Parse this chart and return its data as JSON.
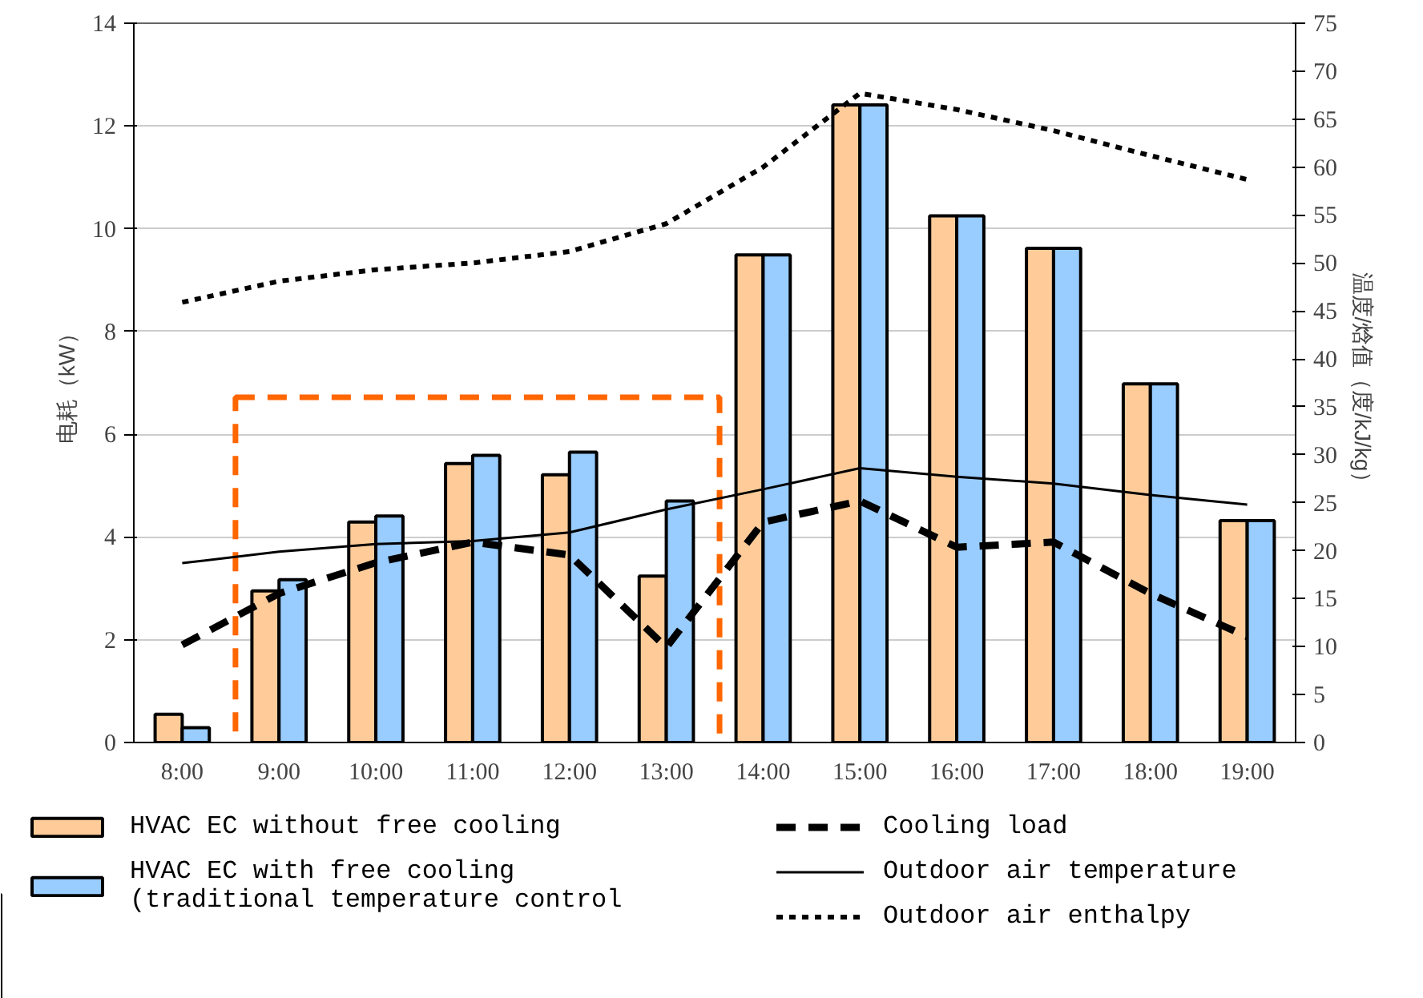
{
  "chart_data": {
    "type": "bar",
    "ylabel": "电耗（kW）",
    "y2label": "温度/焓值（度/kJ/kg）",
    "categories": [
      "8:00",
      "9:00",
      "10:00",
      "11:00",
      "12:00",
      "13:00",
      "14:00",
      "15:00",
      "16:00",
      "17:00",
      "18:00",
      "19:00"
    ],
    "series": [
      {
        "name": "HVAC EC without free cooling",
        "color": "#ffcc99",
        "values": [
          0.55,
          2.95,
          4.29,
          5.43,
          5.21,
          3.24,
          9.49,
          12.41,
          10.25,
          9.62,
          6.98,
          4.32
        ]
      },
      {
        "name": "HVAC EC with free cooling\n(traditional temperature control",
        "color": "#99ccff",
        "values": [
          0.29,
          3.17,
          4.41,
          5.59,
          5.65,
          4.7,
          9.49,
          12.41,
          10.25,
          9.62,
          6.98,
          4.32
        ]
      },
      {
        "name": "Cooling load",
        "color": "#000000",
        "type": "line",
        "line_style": "dashed",
        "values": [
          1.9,
          2.9,
          3.5,
          3.9,
          3.65,
          1.85,
          4.29,
          4.7,
          3.8,
          3.9,
          2.9,
          2.06
        ]
      },
      {
        "name": "Outdoor air temperature",
        "color": "#000000",
        "type": "line",
        "line_style": "solid",
        "axis": "y2",
        "values": [
          18.7,
          19.9,
          20.7,
          21.0,
          21.9,
          24.3,
          26.4,
          28.6,
          27.7,
          27.0,
          25.8,
          24.8
        ]
      },
      {
        "name": "Outdoor air enthalpy",
        "color": "#000000",
        "type": "line",
        "line_style": "dotted",
        "axis": "y2",
        "values": [
          45.9,
          48.1,
          49.3,
          50.0,
          51.2,
          54.1,
          60.0,
          67.7,
          66.0,
          63.8,
          61.2,
          58.7
        ]
      }
    ],
    "ylim": [
      0,
      14
    ],
    "yticks": [
      0,
      2,
      4,
      6,
      8,
      10,
      12,
      14
    ],
    "y2lim": [
      0,
      75
    ],
    "y2ticks": [
      0,
      5,
      10,
      15,
      20,
      25,
      30,
      35,
      40,
      45,
      50,
      55,
      60,
      65,
      70,
      75
    ],
    "grid": "y",
    "legend": "bottom"
  }
}
